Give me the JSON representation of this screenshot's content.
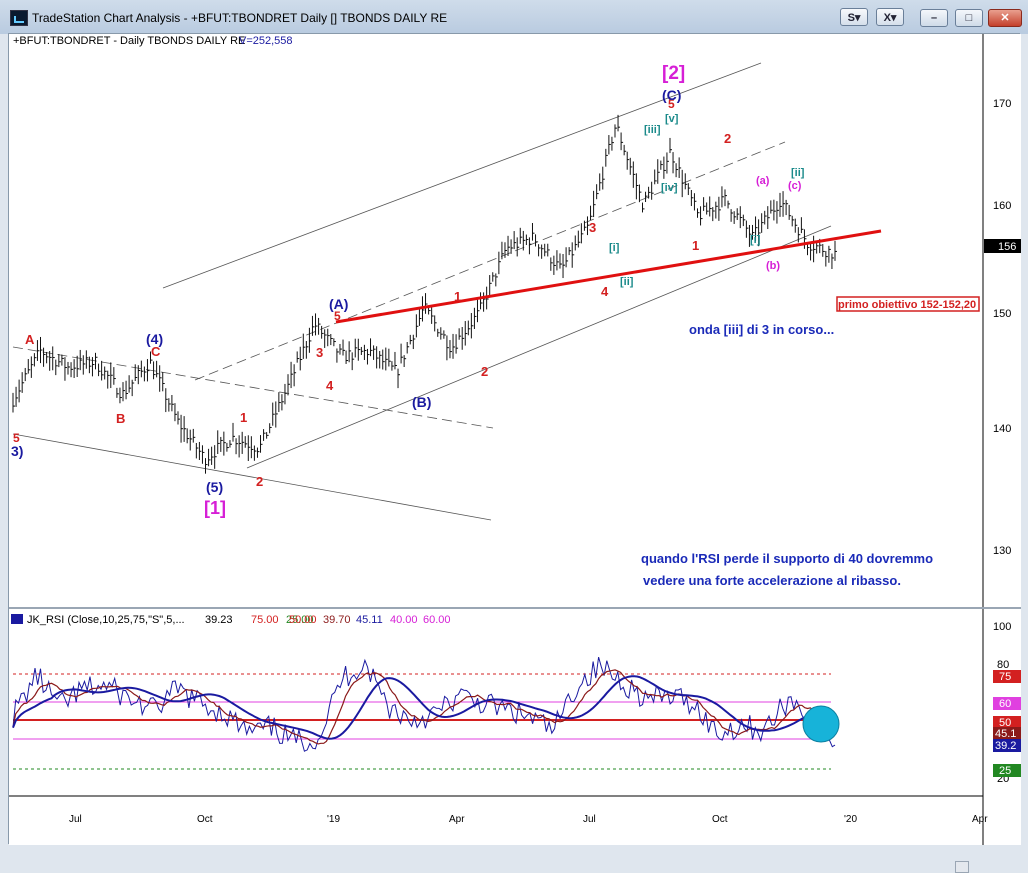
{
  "window": {
    "title": "TradeStation Chart Analysis - +BFUT:TBONDRET Daily [] TBONDS DAILY RE",
    "buttons": {
      "s": "S",
      "s_arrow": "▾",
      "x": "X",
      "x_arrow": "▾"
    },
    "controls": {
      "minimize": "–",
      "maximize": "□",
      "close": "✕"
    }
  },
  "price_panel": {
    "header": "+BFUT:TBONDRET - Daily  TBONDS DAILY RE",
    "volume": "V=252,558",
    "y_ticks": [
      "170",
      "160",
      "150",
      "140",
      "130"
    ],
    "last_price": "156",
    "target_box": "primo obiettivo 152-152,20",
    "comment1": "onda [iii] di 3 in corso...",
    "comment2": "quando l'RSI perde il supporto di 40 dovremmo",
    "comment3": "vedere una forte accelerazione al ribasso."
  },
  "rsi_panel": {
    "header": "JK_RSI (Close,10,25,75,\"S\",5,...",
    "values": [
      "39.23",
      "75.00",
      "25.00",
      "50.00",
      "39.70",
      "45.11",
      "40.00",
      "60.00"
    ],
    "y_ticks": [
      "100",
      "80",
      "20"
    ],
    "badges": [
      "75",
      "60",
      "50",
      "45.1",
      "39.2",
      "25"
    ]
  },
  "x_axis": {
    "labels": [
      "Jul",
      "Oct",
      "'19",
      "Apr",
      "Jul",
      "Oct",
      "'20",
      "Apr"
    ]
  },
  "wave_labels": [
    "A",
    "B",
    "C",
    "(4)",
    "5",
    "3)",
    "(5)",
    "[1]",
    "1",
    "2",
    "3",
    "4",
    "5",
    "(A)",
    "(B)",
    "1",
    "2",
    "3",
    "4",
    "[i]",
    "[ii]",
    "[iii]",
    "[iv]",
    "[v]",
    "5",
    "(C)",
    "[2]",
    "1",
    "2",
    "[i]",
    "(a)",
    "(b)",
    "(c)",
    "[ii]"
  ],
  "colors": {
    "wave_red": "#d32020",
    "wave_blue": "#1a1aa0",
    "wave_magenta": "#d61fd6",
    "wave_teal": "#1a8a8a",
    "pink": "#e040e0",
    "trendline": "#e01010",
    "rsi_blue": "#1a1aa0",
    "rsi_red": "#8b1a1a",
    "highlight": "#17b3d9",
    "note_blue": "#1a2ab8"
  },
  "chart_data": [
    {
      "type": "candlestick",
      "title": "+BFUT:TBONDRET - Daily  TBONDS DAILY RE",
      "x_labels": [
        "Jul",
        "Oct",
        "'19",
        "Apr",
        "Jul",
        "Oct",
        "'20",
        "Apr"
      ],
      "ylim": [
        124,
        174
      ],
      "y_ticks": [
        130,
        140,
        150,
        160,
        170
      ],
      "series_closes": [
        142,
        146.5,
        145,
        145.5,
        142.5,
        145.5,
        140,
        136.5,
        138.5,
        137.5,
        143,
        149,
        146,
        146.5,
        144.5,
        150.5,
        146.8,
        150,
        156,
        157,
        154,
        158,
        167.5,
        160,
        165,
        159,
        160.5,
        157,
        160.5,
        156.5,
        155.5
      ],
      "trendline_points": [
        [
          0.33,
          149.5
        ],
        [
          0.87,
          157.2
        ]
      ]
    },
    {
      "type": "line",
      "title": "JK_RSI (Close,10,25,75,\"S\",5,...",
      "ylim": [
        10,
        105
      ],
      "levels": [
        75,
        60,
        50,
        40,
        25
      ],
      "series_points": [
        55,
        78,
        60,
        70,
        72,
        64,
        58,
        70,
        62,
        56,
        45,
        48,
        40,
        42,
        76,
        85,
        60,
        52,
        56,
        66,
        62,
        58,
        54,
        46,
        72,
        83,
        74,
        64,
        66,
        62,
        44,
        50,
        46,
        64,
        56,
        39
      ]
    }
  ]
}
